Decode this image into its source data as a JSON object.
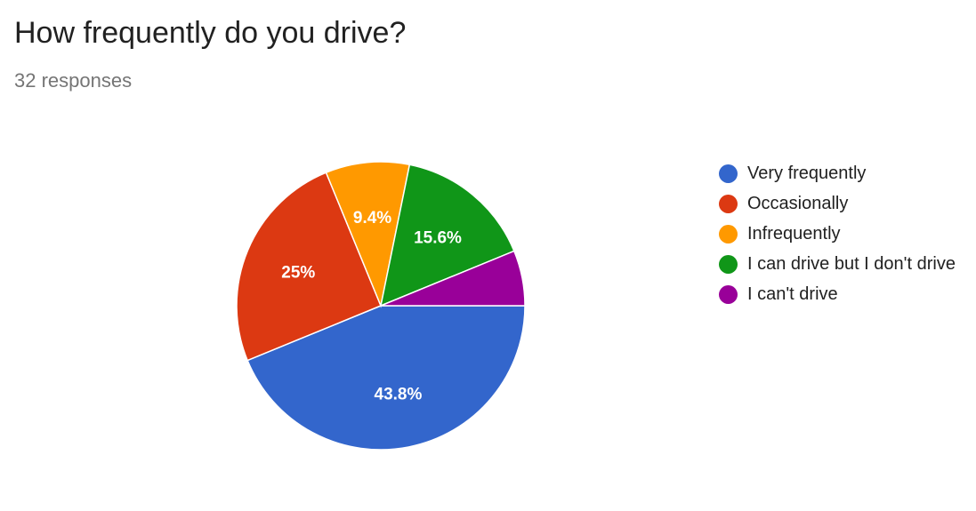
{
  "header": {
    "title": "How frequently do you drive?",
    "responses": "32 responses"
  },
  "chart_data": {
    "type": "pie",
    "title": "How frequently do you drive?",
    "subtitle": "32 responses",
    "legend_position": "right",
    "slices": [
      {
        "label": "Very frequently",
        "value": 43.8,
        "display": "43.8%",
        "color": "#3366cc"
      },
      {
        "label": "Occasionally",
        "value": 25,
        "display": "25%",
        "color": "#dc3912"
      },
      {
        "label": "Infrequently",
        "value": 9.4,
        "display": "9.4%",
        "color": "#ff9900"
      },
      {
        "label": "I can drive but I don't drive",
        "value": 15.6,
        "display": "15.6%",
        "color": "#109618"
      },
      {
        "label": "I can't drive",
        "value": 6.2,
        "display": "",
        "color": "#990099"
      }
    ]
  }
}
